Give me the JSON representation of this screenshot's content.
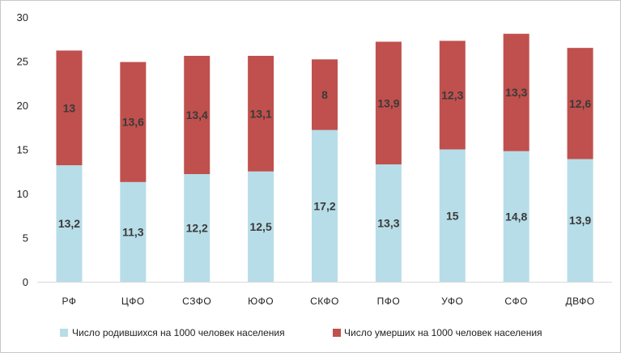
{
  "chart_data": {
    "type": "bar",
    "stacked": true,
    "categories": [
      "РФ",
      "ЦФО",
      "СЗФО",
      "ЮФО",
      "СКФО",
      "ПФО",
      "УФО",
      "СФО",
      "ДВФО"
    ],
    "series": [
      {
        "name": "Число родившихся  на 1000 человек населения",
        "values": [
          13.2,
          11.3,
          12.2,
          12.5,
          17.2,
          13.3,
          15,
          14.8,
          13.9
        ],
        "labels": [
          "13,2",
          "11,3",
          "12,2",
          "12,5",
          "17,2",
          "13,3",
          "15",
          "14,8",
          "13,9"
        ],
        "color": "#b7dde8"
      },
      {
        "name": "Число умерших  на 1000 человек населения",
        "values": [
          13,
          13.6,
          13.4,
          13.1,
          8,
          13.9,
          12.3,
          13.3,
          12.6
        ],
        "labels": [
          "13",
          "13,6",
          "13,4",
          "13,1",
          "8",
          "13,9",
          "12,3",
          "13,3",
          "12,6"
        ],
        "color": "#c0504d"
      }
    ],
    "ylim": [
      0,
      30
    ],
    "yticks": [
      "0",
      "5",
      "10",
      "15",
      "20",
      "25",
      "30"
    ],
    "ytick_values": [
      0,
      5,
      10,
      15,
      20,
      25,
      30
    ],
    "grid": false,
    "legend_position": "bottom"
  }
}
